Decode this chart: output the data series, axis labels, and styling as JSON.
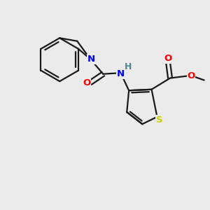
{
  "background_color": "#ebebeb",
  "bond_color": "#1a1a1a",
  "bond_lw": 1.6,
  "figsize": [
    3.0,
    3.0
  ],
  "dpi": 100,
  "colors": {
    "N": "#0000ee",
    "O": "#ff0000",
    "S": "#cccc00",
    "H": "#4a8888",
    "C": "#1a1a1a"
  }
}
